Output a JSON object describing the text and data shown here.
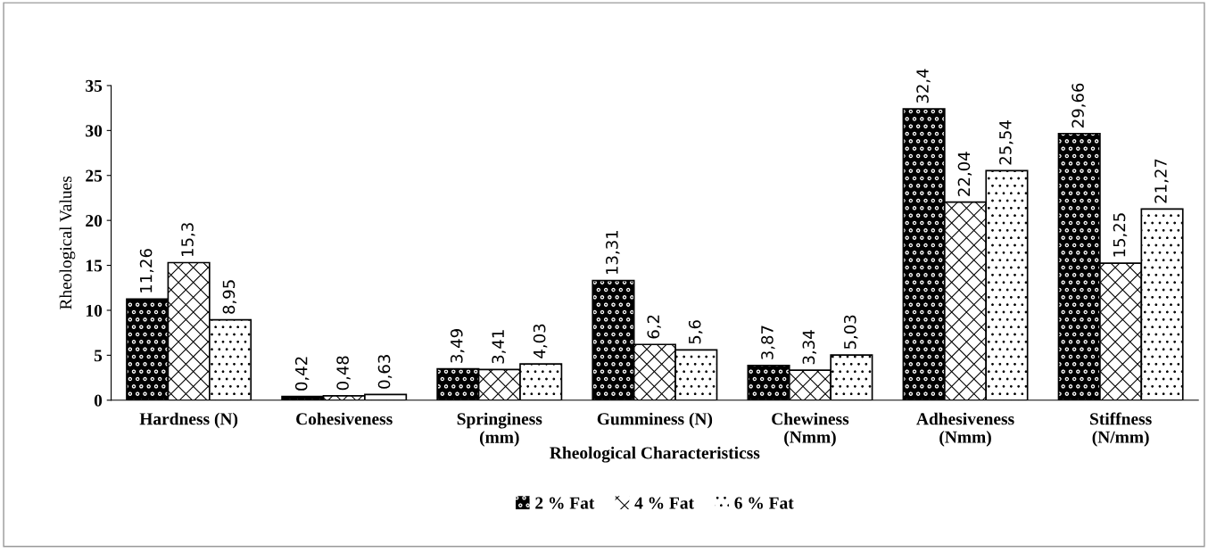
{
  "chart_data": {
    "type": "bar",
    "categories": [
      "Hardness (N)",
      "Cohesiveness",
      "Springiness\n(mm)",
      "Gumminess (N)",
      "Chewiness\n(Nmm)",
      "Adhesiveness\n(Nmm)",
      "Stiffness\n(N/mm)"
    ],
    "series": [
      {
        "name": "2 % Fat",
        "color": "#000000",
        "values": [
          11.26,
          0.42,
          3.49,
          13.31,
          3.87,
          32.4,
          29.66
        ],
        "value_labels": [
          "11,26",
          "0,42",
          "3,49",
          "13,31",
          "3,87",
          "32,4",
          "29,66"
        ]
      },
      {
        "name": "4 % Fat",
        "color": "#ffffff",
        "values": [
          15.3,
          0.48,
          3.41,
          6.2,
          3.34,
          22.04,
          15.25
        ],
        "value_labels": [
          "15,3",
          "0,48",
          "3,41",
          "6,2",
          "3,34",
          "22,04",
          "15,25"
        ]
      },
      {
        "name": "6 % Fat",
        "color": "#ffffff",
        "values": [
          8.95,
          0.63,
          4.03,
          5.6,
          5.03,
          25.54,
          21.27
        ],
        "value_labels": [
          "8,95",
          "0,63",
          "4,03",
          "5,6",
          "5,03",
          "25,54",
          "21,27"
        ]
      }
    ],
    "xlabel": "Rheological Characteristicss",
    "ylabel": "Rheological Values",
    "ylim": [
      0,
      35
    ],
    "yticks": [
      0,
      5,
      10,
      15,
      20,
      25,
      30,
      35
    ],
    "legend": "bottom",
    "grid": false
  }
}
